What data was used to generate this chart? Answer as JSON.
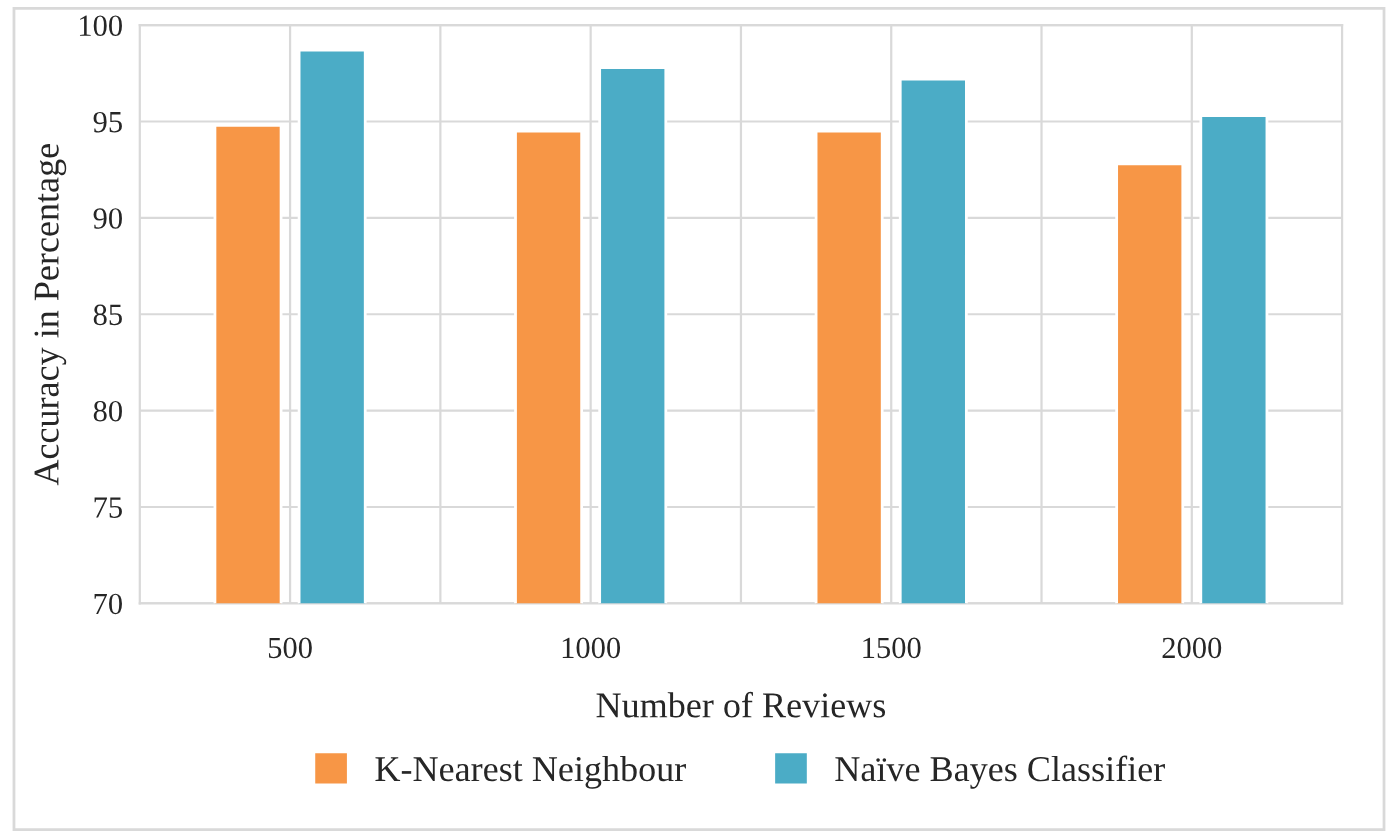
{
  "chart_data": {
    "type": "bar",
    "xlabel": "Number of Reviews",
    "ylabel": "Accuracy in Percentage",
    "categories": [
      "500",
      "1000",
      "1500",
      "2000"
    ],
    "series": [
      {
        "name": "K-Nearest Neighbour",
        "color": "#f79646",
        "values": [
          94.8,
          94.5,
          94.5,
          92.8
        ]
      },
      {
        "name": "Naïve Bayes Classifier",
        "color": "#4bacc6",
        "values": [
          98.7,
          97.8,
          97.2,
          95.3
        ]
      }
    ],
    "ylim": [
      70,
      100
    ],
    "yticks": [
      70,
      75,
      80,
      85,
      90,
      95,
      100
    ],
    "grid": true,
    "legend": "bottom"
  }
}
